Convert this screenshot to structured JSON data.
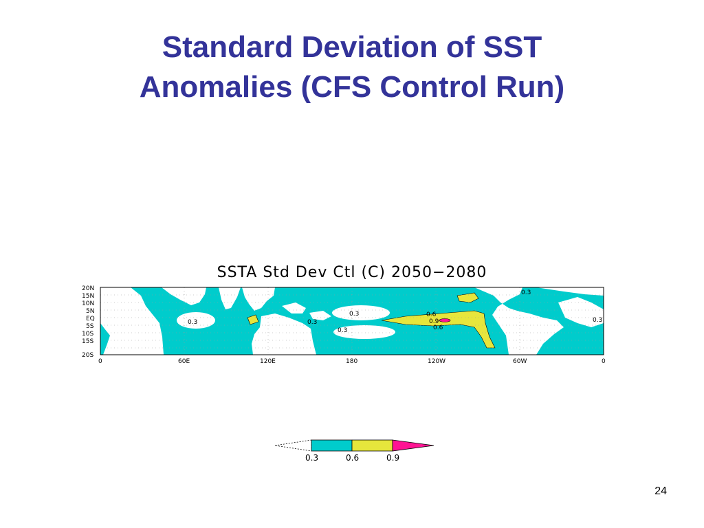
{
  "slide": {
    "title_line1": "Standard Deviation of SST",
    "title_line2": "Anomalies (CFS Control Run)",
    "page_number": "24"
  },
  "map": {
    "title": "SSTA Std Dev Ctl (C) 2050−2080",
    "lat_labels": [
      "20N",
      "15N",
      "10N",
      "5N",
      "EQ",
      "5S",
      "10S",
      "15S",
      "20S"
    ],
    "lon_labels": [
      "0",
      "60E",
      "120E",
      "180",
      "120W",
      "60W",
      "0"
    ],
    "contour_labels": [
      "0.3",
      "0.3",
      "0.3",
      "0.3",
      "0.6",
      "0.9",
      "0.6",
      "0.3",
      "0.3"
    ],
    "colors": {
      "cyan": "#00cccc",
      "yellow": "#e6e63c",
      "magenta": "#ff1493",
      "land": "#ffffff",
      "title_color": "#333399"
    }
  },
  "legend": {
    "levels": [
      "0.3",
      "0.6",
      "0.9"
    ]
  }
}
